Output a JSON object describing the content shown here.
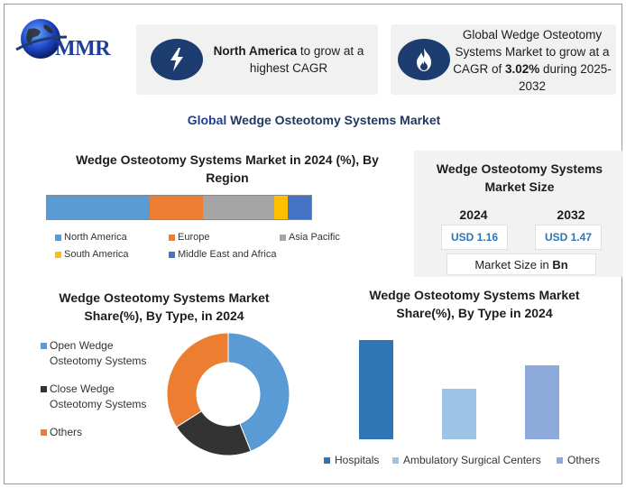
{
  "brand": {
    "name": "MMR"
  },
  "cards": {
    "region_highlight": {
      "bold": "North America",
      "rest": " to grow at a highest CAGR"
    },
    "growth_highlight": {
      "pre": "Global Wedge Osteotomy Systems Market to grow at a CAGR of ",
      "bold": "3.02%",
      "post": " during 2025-2032"
    }
  },
  "main_title": {
    "bold": "Global",
    "rest": " Wedge Osteotomy Systems Market"
  },
  "market_size": {
    "title": "Wedge Osteotomy Systems Market Size",
    "years": [
      "2024",
      "2032"
    ],
    "values": [
      "USD 1.16",
      "USD 1.47"
    ],
    "unit_label_pre": "Market Size in ",
    "unit_label_bold": "Bn"
  },
  "colors": {
    "north_america": "#5b9bd5",
    "europe": "#ed7d31",
    "asia_pacific": "#a5a5a5",
    "south_america": "#ffc000",
    "mea": "#4472c4",
    "open_wedge": "#5b9bd5",
    "close_wedge": "#333333",
    "others": "#ed7d31",
    "hospitals": "#2e75b6",
    "asc": "#9dc3e6",
    "others_enduser": "#8eaadb",
    "icon_circle": "#1d3d70"
  },
  "icons": [
    "globe-icon",
    "lightning-icon",
    "flame-icon"
  ],
  "chart_data": [
    {
      "type": "bar",
      "orientation": "horizontal-stacked",
      "title": "Wedge Osteotomy Systems Market in 2024 (%), By Region",
      "series": [
        {
          "name": "North America",
          "values": [
            39
          ]
        },
        {
          "name": "Europe",
          "values": [
            20
          ]
        },
        {
          "name": "Asia Pacific",
          "values": [
            27
          ]
        },
        {
          "name": "South America",
          "values": [
            5
          ]
        },
        {
          "name": "Middle East and Africa",
          "values": [
            9
          ]
        }
      ],
      "xlim": [
        0,
        100
      ],
      "legend": "bottom"
    },
    {
      "type": "pie",
      "variant": "donut",
      "title": "Wedge Osteotomy Systems Market Share(%), By Type, in 2024",
      "categories": [
        "Open Wedge Osteotomy Systems",
        "Close Wedge Osteotomy Systems",
        "Others"
      ],
      "values": [
        44,
        22,
        34
      ],
      "legend": "left"
    },
    {
      "type": "bar",
      "title": "Wedge Osteotomy Systems Market Share(%), By Type in 2024",
      "categories": [
        "Hospitals",
        "Ambulatory Surgical Centers",
        "Others"
      ],
      "values": [
        55,
        28,
        41
      ],
      "ylim": [
        0,
        60
      ],
      "legend": "bottom"
    }
  ]
}
